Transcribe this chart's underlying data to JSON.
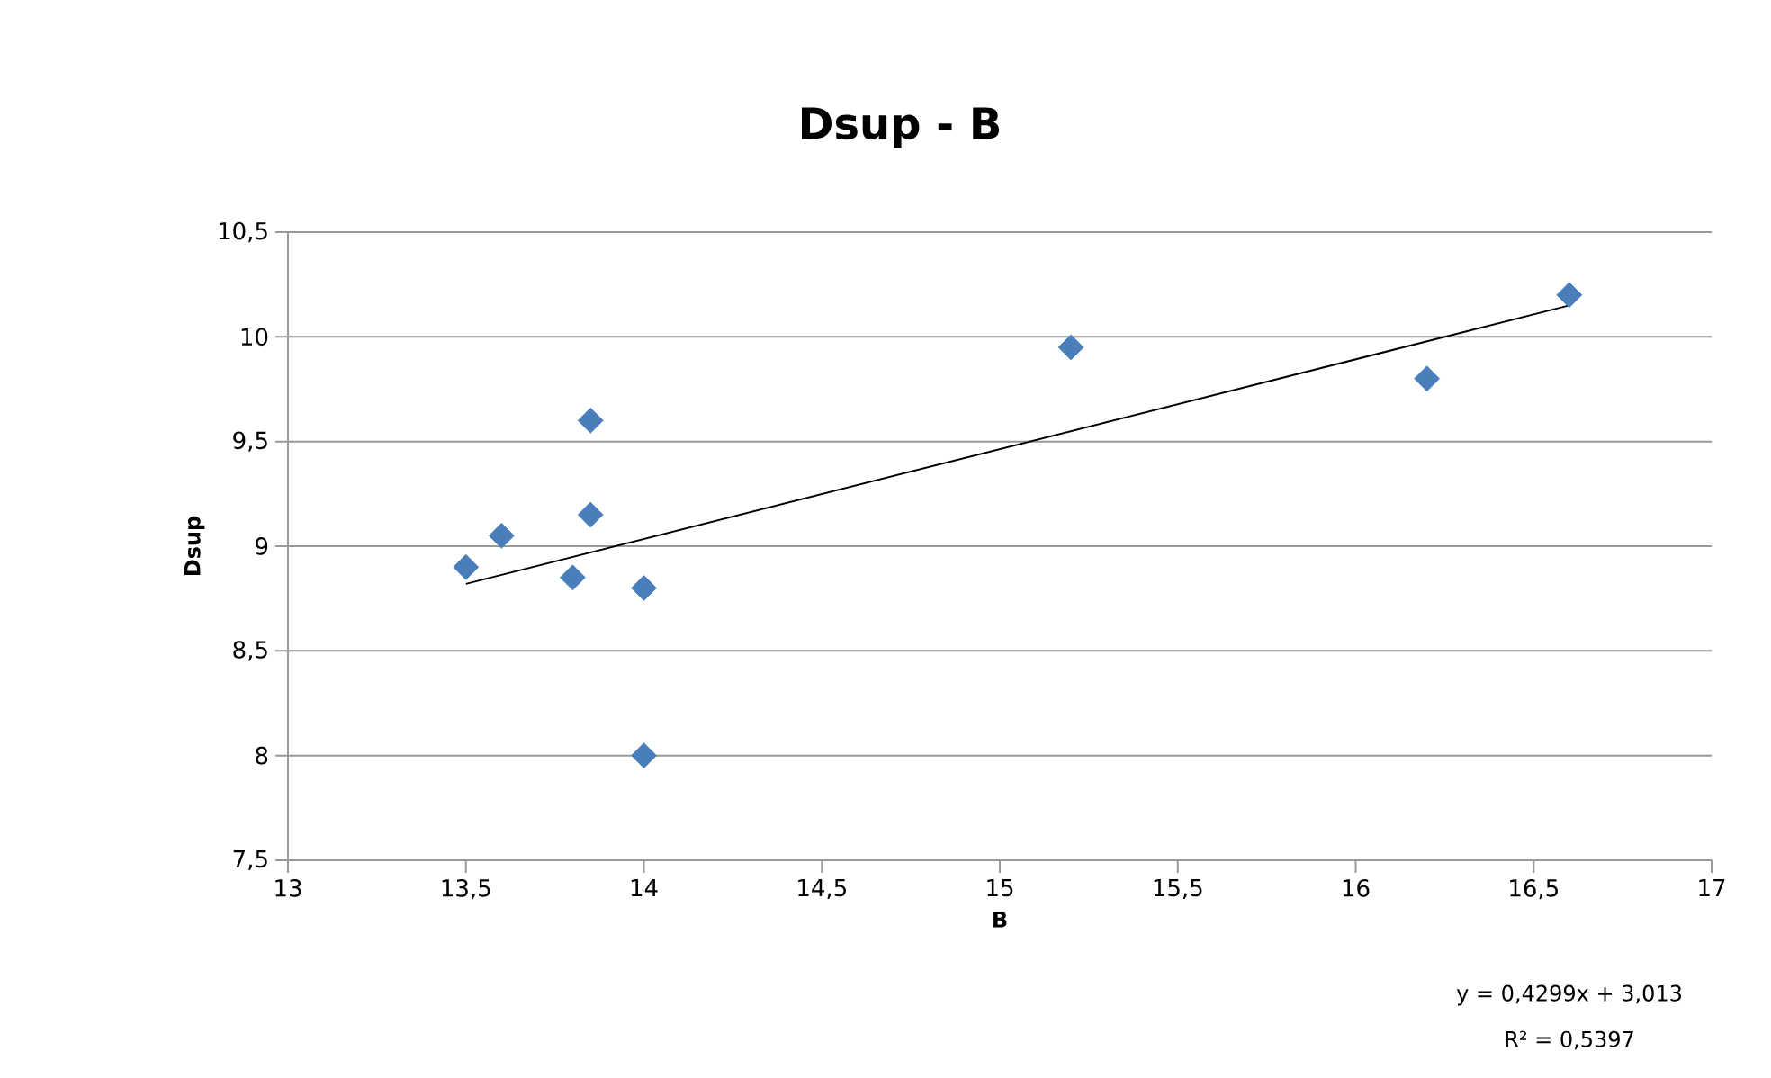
{
  "chart_data": {
    "type": "scatter",
    "title": "Dsup - B",
    "xlabel": "B",
    "ylabel": "Dsup",
    "xlim": [
      13,
      17
    ],
    "ylim": [
      7.5,
      10.5
    ],
    "xticks": [
      13,
      {
        "value": 13.5,
        "label": "13,5"
      },
      14,
      {
        "value": 14.5,
        "label": "14,5"
      },
      15,
      {
        "value": 15.5,
        "label": "15,5"
      },
      16,
      {
        "value": 16.5,
        "label": "16,5"
      },
      17
    ],
    "yticks": [
      {
        "value": 7.5,
        "label": "7,5"
      },
      8,
      {
        "value": 8.5,
        "label": "8,5"
      },
      9,
      {
        "value": 9.5,
        "label": "9,5"
      },
      10,
      {
        "value": 10.5,
        "label": "10,5"
      }
    ],
    "grid": "y",
    "series": [
      {
        "marker": "diamond",
        "color": "#4a7ebb",
        "x": [
          13.5,
          13.6,
          13.8,
          13.85,
          13.85,
          14,
          14,
          15.2,
          16.2,
          16.6
        ],
        "values": [
          8.9,
          9.05,
          8.85,
          9.6,
          9.15,
          8.8,
          8.0,
          9.95,
          9.8,
          10.2
        ]
      },
      {
        "type": "line",
        "marker": "none",
        "color": "#000000",
        "x": [
          13.5,
          16.6
        ],
        "values": [
          8.82,
          10.15
        ]
      }
    ],
    "annotations": [
      "y = 0,4299x + 3,013",
      "R² = 0,5397"
    ]
  }
}
